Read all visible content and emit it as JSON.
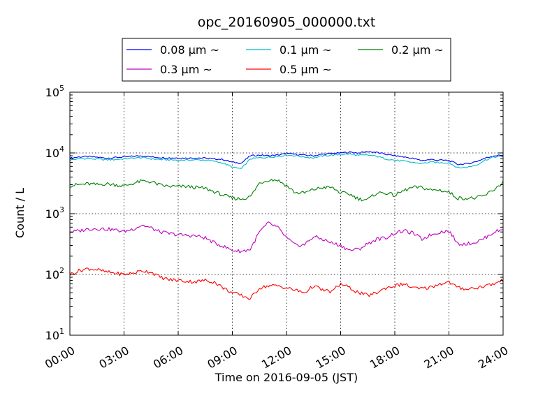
{
  "chart_data": {
    "type": "line",
    "title": "opc_20160905_000000.txt",
    "xlabel": "Time on 2016-09-05 (JST)",
    "ylabel": "Count / L",
    "x_unit": "hour of day",
    "xlim": [
      0,
      24
    ],
    "ylim": [
      10,
      100000
    ],
    "yscale": "log",
    "grid": true,
    "legend_position": "top-center, above plot",
    "x_ticks": [
      {
        "value": 0,
        "label": "00:00"
      },
      {
        "value": 3,
        "label": "03:00"
      },
      {
        "value": 6,
        "label": "06:00"
      },
      {
        "value": 9,
        "label": "09:00"
      },
      {
        "value": 12,
        "label": "12:00"
      },
      {
        "value": 15,
        "label": "15:00"
      },
      {
        "value": 18,
        "label": "18:00"
      },
      {
        "value": 21,
        "label": "21:00"
      },
      {
        "value": 24,
        "label": "24:00"
      }
    ],
    "y_ticks": [
      {
        "value": 10,
        "base": "10",
        "exp": "1"
      },
      {
        "value": 100,
        "base": "10",
        "exp": "2"
      },
      {
        "value": 1000,
        "base": "10",
        "exp": "3"
      },
      {
        "value": 10000,
        "base": "10",
        "exp": "4"
      },
      {
        "value": 100000,
        "base": "10",
        "exp": "5"
      }
    ],
    "x": [
      0,
      0.5,
      1,
      1.5,
      2,
      2.5,
      3,
      3.5,
      4,
      4.5,
      5,
      5.5,
      6,
      6.5,
      7,
      7.5,
      8,
      8.5,
      9,
      9.5,
      10,
      10.5,
      11,
      11.5,
      12,
      12.5,
      13,
      13.5,
      14,
      14.5,
      15,
      15.5,
      16,
      16.5,
      17,
      17.5,
      18,
      18.5,
      19,
      19.5,
      20,
      20.5,
      21,
      21.5,
      22,
      22.5,
      23,
      23.5,
      24
    ],
    "series": [
      {
        "name": "0.08 μm ~",
        "color": "#0000ff",
        "values": [
          8200,
          8600,
          8700,
          8500,
          8200,
          8400,
          8600,
          8800,
          9000,
          8600,
          8400,
          8300,
          8300,
          8200,
          8300,
          8200,
          8000,
          7800,
          7000,
          6800,
          9000,
          9200,
          9000,
          9200,
          9800,
          9500,
          9200,
          9000,
          9500,
          9800,
          10000,
          10300,
          10000,
          10500,
          10200,
          9500,
          9000,
          8600,
          8100,
          7500,
          7800,
          7600,
          7500,
          6500,
          6600,
          7200,
          8200,
          9000,
          9200
        ]
      },
      {
        "name": "0.1 μm ~",
        "color": "#00bfbf",
        "values": [
          7600,
          8000,
          8100,
          7900,
          7700,
          7800,
          8000,
          8200,
          8400,
          8000,
          7800,
          7700,
          7600,
          7600,
          7700,
          7600,
          7300,
          6800,
          5800,
          5500,
          8000,
          8300,
          8500,
          8800,
          9200,
          9000,
          8600,
          8300,
          8900,
          9200,
          9400,
          9600,
          9100,
          9200,
          8800,
          8000,
          7600,
          7300,
          7000,
          6700,
          7100,
          6900,
          6900,
          5700,
          5800,
          6300,
          7600,
          8600,
          8800
        ]
      },
      {
        "name": "0.2 μm ~",
        "color": "#008000",
        "values": [
          2900,
          3000,
          3100,
          3000,
          3100,
          3000,
          2850,
          3150,
          3450,
          3350,
          2950,
          2800,
          2800,
          2800,
          2700,
          2600,
          2300,
          2000,
          1800,
          1750,
          1900,
          3200,
          3600,
          3600,
          2900,
          2200,
          2200,
          2500,
          2700,
          2700,
          2200,
          2100,
          1750,
          1700,
          2200,
          2200,
          2000,
          2400,
          2700,
          2700,
          2450,
          2450,
          2250,
          1800,
          1800,
          1800,
          2000,
          2500,
          3300
        ]
      },
      {
        "name": "0.3 μm ~",
        "color": "#bf00bf",
        "values": [
          500,
          520,
          560,
          570,
          560,
          540,
          510,
          560,
          650,
          580,
          500,
          470,
          450,
          440,
          430,
          400,
          330,
          290,
          250,
          240,
          260,
          500,
          700,
          600,
          400,
          300,
          310,
          420,
          380,
          330,
          300,
          250,
          260,
          320,
          380,
          400,
          480,
          520,
          480,
          380,
          450,
          500,
          520,
          320,
          320,
          340,
          400,
          500,
          550
        ]
      },
      {
        "name": "0.5 μm ~",
        "color": "#ff0000",
        "values": [
          100,
          115,
          125,
          120,
          110,
          105,
          100,
          105,
          115,
          110,
          90,
          82,
          80,
          77,
          76,
          80,
          75,
          60,
          50,
          45,
          40,
          60,
          65,
          65,
          60,
          55,
          50,
          65,
          55,
          52,
          70,
          60,
          50,
          45,
          50,
          60,
          65,
          70,
          60,
          58,
          62,
          70,
          75,
          60,
          58,
          60,
          65,
          70,
          80
        ]
      }
    ]
  }
}
